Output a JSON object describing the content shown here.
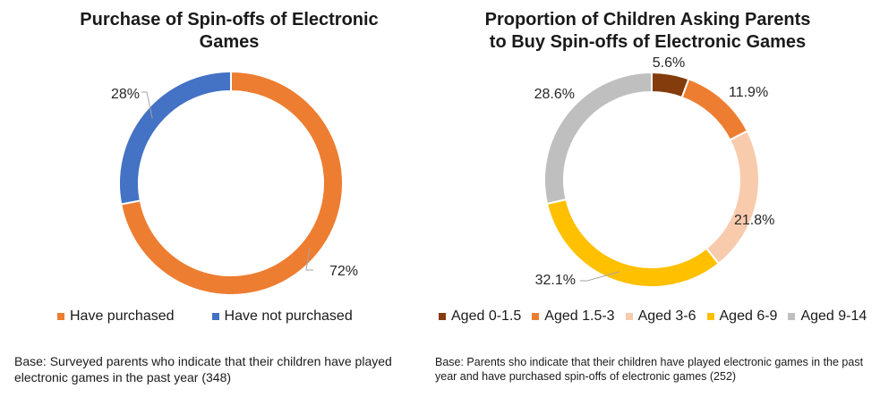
{
  "chart_data": [
    {
      "type": "pie",
      "variant": "donut",
      "title": "Purchase of Spin-offs of Electronic\nGames",
      "categories": [
        "Have purchased",
        "Have not purchased"
      ],
      "values": [
        72,
        28
      ],
      "labels": [
        "72%",
        "28%"
      ],
      "colors": [
        "#ED7D31",
        "#4472C4"
      ],
      "legend_position": "bottom",
      "base_note": "Base: Surveyed parents who indicate that their children have played electronic games in the past year (348)"
    },
    {
      "type": "pie",
      "variant": "donut",
      "title": "Proportion of Children Asking Parents\nto Buy Spin-offs of Electronic Games",
      "categories": [
        "Aged 0-1.5",
        "Aged 1.5-3",
        "Aged 3-6",
        "Aged 6-9",
        "Aged 9-14"
      ],
      "values": [
        5.6,
        11.9,
        21.8,
        32.1,
        28.6
      ],
      "labels": [
        "5.6%",
        "11.9%",
        "21.8%",
        "32.1%",
        "28.6%"
      ],
      "colors": [
        "#843C0C",
        "#ED7D31",
        "#F8CBAD",
        "#FFC000",
        "#BFBFBF"
      ],
      "legend_position": "bottom",
      "base_note": "Base: Parents sho indicate that their children have played electronic games in the past year and have purchased spin-offs of electronic games (252)"
    }
  ]
}
